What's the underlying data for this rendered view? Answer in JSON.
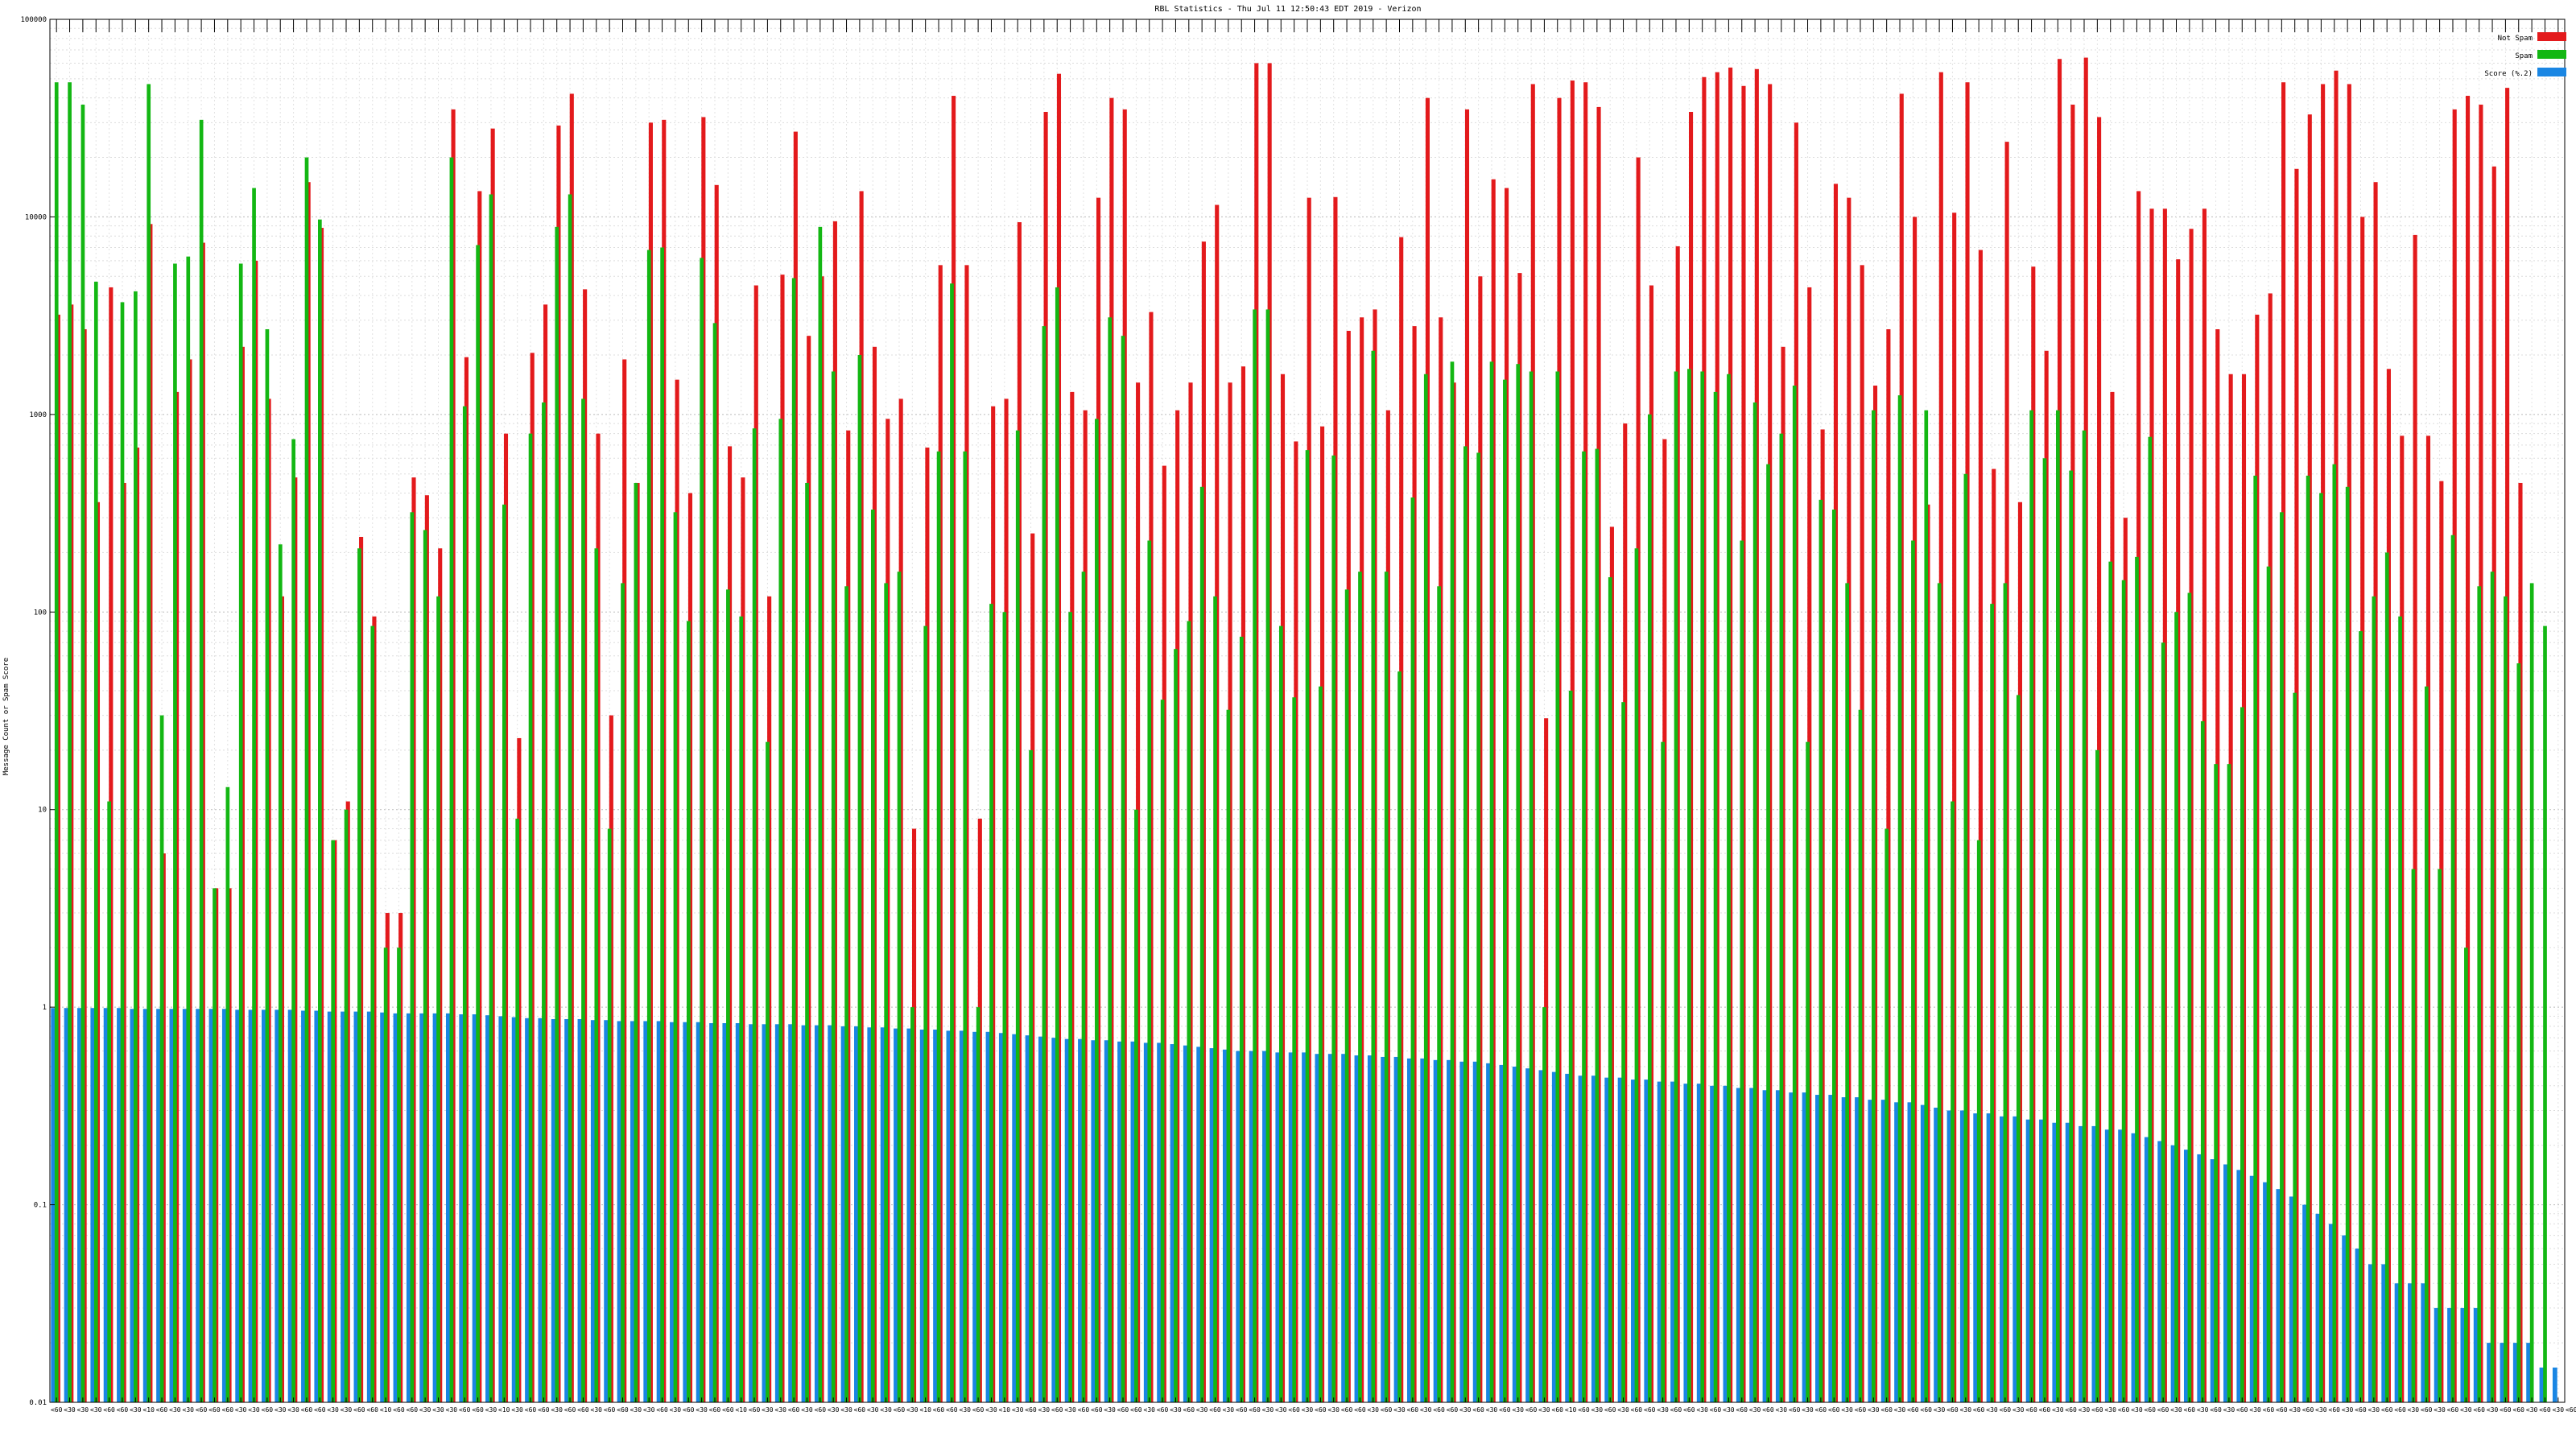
{
  "chart_data": {
    "type": "bar",
    "title": "RBL Statistics - Thu Jul 11 12:50:43 EDT 2019 - Verizon",
    "ylabel": "Message Count or Spam Score",
    "xlabel": "",
    "yscale": "log",
    "ylim": [
      0.01,
      100000
    ],
    "yticks": [
      {
        "value": 0.01,
        "label": "0.01"
      },
      {
        "value": 0.1,
        "label": "0.1"
      },
      {
        "value": 1,
        "label": "1"
      },
      {
        "value": 10,
        "label": "10"
      },
      {
        "value": 100,
        "label": "100"
      },
      {
        "value": 1000,
        "label": "1000"
      },
      {
        "value": 10000,
        "label": "10000"
      },
      {
        "value": 100000,
        "label": "100000"
      }
    ],
    "grid": true,
    "legend_position": "top-right",
    "colors": {
      "not_spam": "#e31a1c",
      "spam": "#13b713",
      "score": "#1a86e3"
    },
    "legend": [
      "Not Spam",
      "Spam",
      "Score (%.2)"
    ],
    "category_labels": [
      "<60",
      "<30",
      "<30",
      "<30",
      "<60",
      "<60",
      "<30",
      "<10",
      "<60",
      "<30",
      "<30",
      "<60",
      "<60",
      "<60",
      "<30",
      "<30",
      "<60",
      "<30",
      "<30",
      "<60",
      "<60",
      "<30",
      "<30",
      "<60",
      "<60",
      "<10",
      "<60",
      "<60",
      "<30",
      "<30",
      "<30",
      "<60",
      "<60",
      "<30",
      "<10",
      "<30",
      "<60",
      "<60",
      "<30",
      "<60",
      "<60",
      "<30",
      "<60",
      "<60",
      "<30",
      "<30",
      "<60",
      "<30",
      "<60",
      "<30",
      "<60",
      "<60",
      "<10",
      "<60",
      "<30",
      "<30",
      "<60",
      "<30",
      "<60",
      "<30",
      "<30",
      "<60",
      "<30",
      "<30",
      "<60",
      "<30",
      "<10",
      "<60",
      "<60",
      "<30",
      "<60",
      "<30",
      "<10",
      "<30",
      "<60",
      "<30",
      "<60",
      "<30",
      "<60",
      "<60",
      "<30",
      "<60",
      "<60",
      "<30",
      "<60",
      "<30",
      "<60",
      "<30",
      "<60",
      "<30",
      "<60",
      "<60",
      "<30",
      "<30",
      "<60",
      "<30",
      "<60",
      "<30",
      "<60",
      "<60",
      "<30",
      "<60",
      "<30",
      "<60",
      "<30",
      "<60",
      "<60",
      "<30",
      "<60",
      "<30",
      "<60",
      "<30",
      "<60",
      "<30",
      "<60",
      "<10",
      "<60",
      "<30",
      "<60",
      "<30",
      "<60",
      "<60",
      "<30",
      "<60",
      "<60",
      "<30",
      "<60",
      "<30",
      "<60",
      "<30",
      "<60",
      "<30",
      "<60",
      "<30",
      "<60",
      "<60",
      "<30",
      "<60",
      "<30",
      "<60",
      "<30",
      "<60",
      "<60",
      "<30",
      "<60",
      "<30",
      "<60",
      "<30",
      "<60",
      "<30",
      "<60",
      "<60",
      "<30",
      "<60",
      "<30",
      "<60",
      "<30",
      "<60",
      "<30",
      "<60",
      "<60",
      "<30",
      "<60",
      "<30",
      "<60",
      "<30",
      "<60",
      "<30",
      "<60",
      "<60",
      "<30",
      "<60",
      "<30",
      "<60",
      "<30",
      "<60",
      "<30",
      "<60",
      "<60",
      "<30",
      "<60",
      "<30",
      "<60",
      "<30",
      "<60",
      "<30",
      "<60",
      "<60",
      "<30",
      "<60",
      "<30",
      "<60",
      "<30",
      "<60",
      "<30",
      "<60"
    ],
    "not_spam": [
      3200,
      3600,
      2700,
      360,
      4400,
      450,
      680,
      9200,
      6,
      1300,
      1900,
      7400,
      4,
      4,
      2200,
      6000,
      1200,
      120,
      480,
      15000,
      8800,
      7,
      11,
      240,
      95,
      3,
      3,
      480,
      390,
      210,
      35000,
      1950,
      13500,
      28000,
      800,
      23,
      2050,
      3600,
      29000,
      42000,
      4300,
      800,
      30,
      1900,
      450,
      30000,
      31000,
      1500,
      400,
      32000,
      14500,
      690,
      480,
      4500,
      120,
      5100,
      27000,
      2500,
      5000,
      9500,
      830,
      13500,
      2200,
      950,
      1200,
      8,
      680,
      5700,
      41000,
      5700,
      9,
      1100,
      1200,
      9400,
      250,
      34000,
      53000,
      1300,
      1050,
      12500,
      40000,
      35000,
      1450,
      3300,
      550,
      1050,
      1450,
      7500,
      11500,
      1450,
      1750,
      60000,
      60000,
      1600,
      730,
      12500,
      870,
      12600,
      2650,
      3100,
      3400,
      1050,
      7900,
      2800,
      40000,
      3100,
      1450,
      35000,
      5000,
      15500,
      14000,
      5200,
      47000,
      29,
      40000,
      49000,
      48000,
      36000,
      270,
      900,
      20000,
      4500,
      750,
      7100,
      34000,
      51000,
      54000,
      57000,
      46000,
      56000,
      47000,
      2200,
      30000,
      4400,
      840,
      14700,
      12500,
      5700,
      1400,
      2700,
      42000,
      10000,
      350,
      54000,
      10500,
      48000,
      6800,
      530,
      24000,
      360,
      5600,
      2100,
      63000,
      37000,
      64000,
      32000,
      1300,
      300,
      13500,
      11000,
      11000,
      6100,
      8700,
      11000,
      2700,
      1600,
      1600,
      3200,
      4100,
      48000,
      17500,
      33000,
      47000,
      55000,
      47000,
      10000,
      15000,
      1700,
      780,
      8100,
      780,
      460,
      35000,
      41000,
      37000,
      18000,
      45000,
      450
    ],
    "spam": [
      48000,
      48000,
      37000,
      4700,
      11,
      3700,
      4200,
      47000,
      30,
      5800,
      6300,
      31000,
      4,
      13,
      5800,
      14000,
      2700,
      220,
      750,
      20000,
      9700,
      7,
      10,
      210,
      85,
      2,
      2,
      320,
      260,
      120,
      20000,
      1100,
      7200,
      13000,
      350,
      9,
      800,
      1150,
      8900,
      13000,
      1200,
      210,
      8,
      140,
      450,
      6800,
      7000,
      320,
      90,
      6200,
      2900,
      130,
      95,
      850,
      22,
      950,
      4900,
      450,
      8900,
      1650,
      135,
      2000,
      330,
      140,
      160,
      1,
      85,
      650,
      4600,
      650,
      1,
      110,
      100,
      830,
      20,
      2800,
      4400,
      100,
      160,
      950,
      3100,
      2500,
      10,
      230,
      36,
      65,
      90,
      430,
      120,
      32,
      75,
      3400,
      3400,
      85,
      37,
      660,
      42,
      620,
      130,
      160,
      2100,
      160,
      50,
      380,
      1600,
      135,
      1850,
      690,
      640,
      1850,
      1500,
      1800,
      1650,
      1,
      1650,
      40,
      650,
      670,
      150,
      35,
      210,
      1000,
      22,
      1650,
      1700,
      1650,
      1300,
      1600,
      230,
      1150,
      560,
      800,
      1400,
      22,
      370,
      330,
      140,
      32,
      1050,
      8,
      1250,
      230,
      1050,
      140,
      11,
      500,
      7,
      110,
      140,
      38,
      1050,
      600,
      1050,
      520,
      830,
      20,
      180,
      145,
      190,
      770,
      70,
      100,
      125,
      28,
      17,
      17,
      33,
      490,
      170,
      320,
      39,
      490,
      400,
      560,
      430,
      80,
      120,
      200,
      95,
      5,
      42,
      5,
      245,
      2,
      135,
      160,
      120,
      55,
      140,
      85
    ],
    "score": [
      0.99,
      0.99,
      0.99,
      0.99,
      0.99,
      0.99,
      0.98,
      0.98,
      0.98,
      0.98,
      0.98,
      0.98,
      0.98,
      0.98,
      0.97,
      0.97,
      0.97,
      0.97,
      0.97,
      0.96,
      0.96,
      0.95,
      0.95,
      0.95,
      0.95,
      0.94,
      0.93,
      0.93,
      0.93,
      0.93,
      0.93,
      0.92,
      0.92,
      0.91,
      0.9,
      0.89,
      0.88,
      0.88,
      0.87,
      0.87,
      0.87,
      0.86,
      0.86,
      0.85,
      0.85,
      0.85,
      0.85,
      0.84,
      0.84,
      0.84,
      0.83,
      0.83,
      0.83,
      0.82,
      0.82,
      0.82,
      0.82,
      0.81,
      0.81,
      0.81,
      0.8,
      0.8,
      0.79,
      0.79,
      0.78,
      0.78,
      0.77,
      0.77,
      0.76,
      0.76,
      0.75,
      0.75,
      0.74,
      0.73,
      0.72,
      0.71,
      0.7,
      0.69,
      0.69,
      0.68,
      0.68,
      0.67,
      0.67,
      0.66,
      0.66,
      0.65,
      0.64,
      0.63,
      0.62,
      0.61,
      0.6,
      0.6,
      0.6,
      0.59,
      0.59,
      0.59,
      0.58,
      0.58,
      0.58,
      0.57,
      0.57,
      0.56,
      0.56,
      0.55,
      0.55,
      0.54,
      0.54,
      0.53,
      0.53,
      0.52,
      0.51,
      0.5,
      0.49,
      0.48,
      0.47,
      0.46,
      0.45,
      0.45,
      0.44,
      0.44,
      0.43,
      0.43,
      0.42,
      0.42,
      0.41,
      0.41,
      0.4,
      0.4,
      0.39,
      0.39,
      0.38,
      0.38,
      0.37,
      0.37,
      0.36,
      0.36,
      0.35,
      0.35,
      0.34,
      0.34,
      0.33,
      0.33,
      0.32,
      0.31,
      0.3,
      0.3,
      0.29,
      0.29,
      0.28,
      0.28,
      0.27,
      0.27,
      0.26,
      0.26,
      0.25,
      0.25,
      0.24,
      0.24,
      0.23,
      0.22,
      0.21,
      0.2,
      0.19,
      0.18,
      0.17,
      0.16,
      0.15,
      0.14,
      0.13,
      0.12,
      0.11,
      0.1,
      0.09,
      0.08,
      0.07,
      0.06,
      0.05,
      0.05,
      0.04,
      0.04,
      0.04,
      0.03,
      0.03,
      0.03,
      0.03,
      0.02,
      0.02,
      0.02,
      0.02,
      0.015,
      0.015
    ]
  }
}
